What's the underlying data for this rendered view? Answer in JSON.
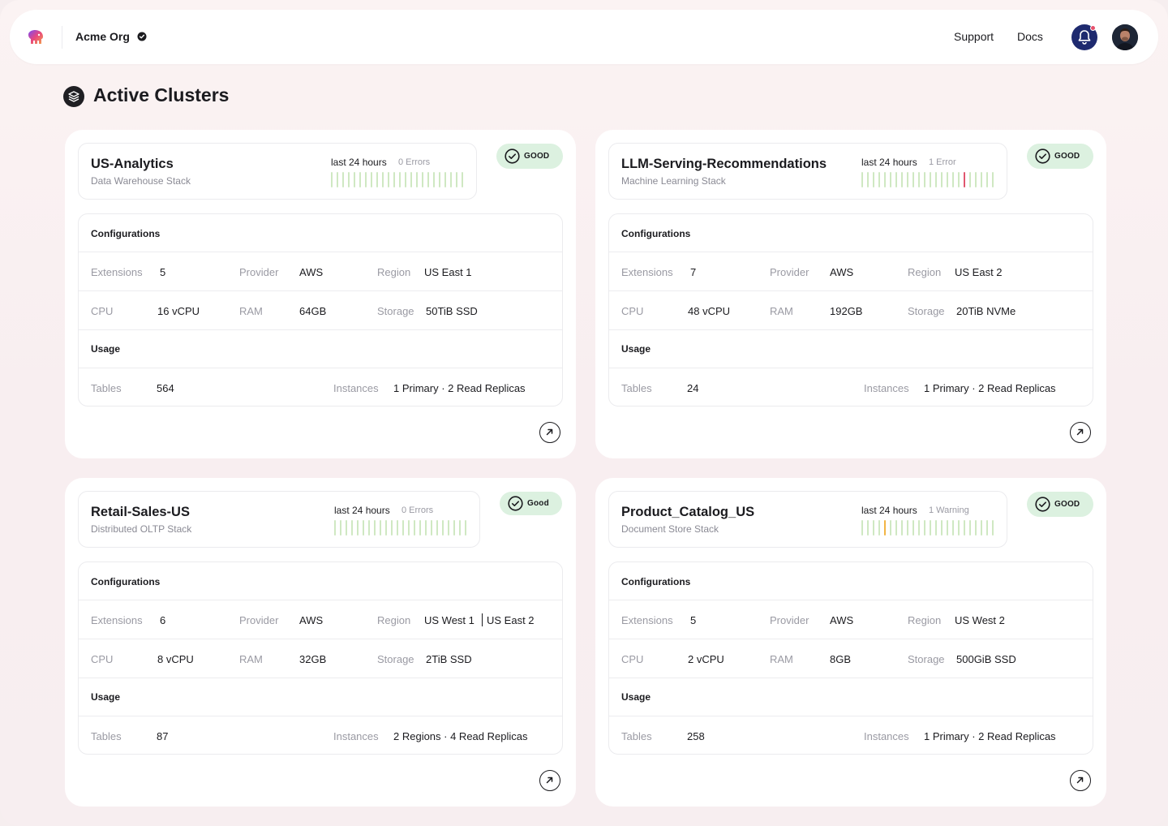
{
  "header": {
    "org_name": "Acme Org",
    "nav": {
      "support": "Support",
      "docs": "Docs"
    }
  },
  "page": {
    "title": "Active Clusters"
  },
  "labels": {
    "configurations": "Configurations",
    "usage": "Usage",
    "extensions": "Extensions",
    "provider": "Provider",
    "region": "Region",
    "cpu": "CPU",
    "ram": "RAM",
    "storage": "Storage",
    "tables": "Tables",
    "instances": "Instances"
  },
  "colors": {
    "bar_ok": "#cfe8c2",
    "bar_error": "#e0566e",
    "bar_warning": "#f2b544",
    "badge_bg": "#dcf1e0"
  },
  "clusters": [
    {
      "name": "US-Analytics",
      "stack": "Data Warehouse Stack",
      "period": "last 24 hours",
      "issues": "0 Errors",
      "status": "GOOD",
      "extensions": "5",
      "provider": "AWS",
      "region": "US East 1",
      "cpu": "16 vCPU",
      "ram": "64GB",
      "storage": "50TiB SSD",
      "tables": "564",
      "instances": "1 Primary · 2 Read Replicas",
      "bars": [
        "ok",
        "ok",
        "ok",
        "ok",
        "ok",
        "ok",
        "ok",
        "ok",
        "ok",
        "ok",
        "ok",
        "ok",
        "ok",
        "ok",
        "ok",
        "ok",
        "ok",
        "ok",
        "ok",
        "ok",
        "ok",
        "ok",
        "ok",
        "ok"
      ]
    },
    {
      "name": "LLM-Serving-Recommendations",
      "stack": "Machine Learning Stack",
      "period": "last 24 hours",
      "issues": "1 Error",
      "status": "GOOD",
      "extensions": "7",
      "provider": "AWS",
      "region": "US East 2",
      "cpu": "48 vCPU",
      "ram": "192GB",
      "storage": "20TiB NVMe",
      "tables": "24",
      "instances": "1 Primary · 2 Read Replicas",
      "bars": [
        "ok",
        "ok",
        "ok",
        "ok",
        "ok",
        "ok",
        "ok",
        "ok",
        "ok",
        "ok",
        "ok",
        "ok",
        "ok",
        "ok",
        "ok",
        "ok",
        "ok",
        "ok",
        "error",
        "ok",
        "ok",
        "ok",
        "ok",
        "ok"
      ]
    },
    {
      "name": "Retail-Sales-US",
      "stack": "Distributed OLTP Stack",
      "period": "last 24 hours",
      "issues": "0 Errors",
      "status": "Good",
      "extensions": "6",
      "provider": "AWS",
      "region": "US West 1",
      "region_extra": "US East 2",
      "cpu": "8 vCPU",
      "ram": "32GB",
      "storage": "2TiB SSD",
      "tables": "87",
      "instances": "2 Regions · 4 Read Replicas",
      "bars": [
        "ok",
        "ok",
        "ok",
        "ok",
        "ok",
        "ok",
        "ok",
        "ok",
        "ok",
        "ok",
        "ok",
        "ok",
        "ok",
        "ok",
        "ok",
        "ok",
        "ok",
        "ok",
        "ok",
        "ok",
        "ok",
        "ok",
        "ok",
        "ok"
      ]
    },
    {
      "name": "Product_Catalog_US",
      "stack": "Document Store Stack",
      "period": "last 24 hours",
      "issues": "1 Warning",
      "status": "GOOD",
      "extensions": "5",
      "provider": "AWS",
      "region": "US West 2",
      "cpu": "2 vCPU",
      "ram": "8GB",
      "storage": "500GiB SSD",
      "tables": "258",
      "instances": "1 Primary · 2 Read Replicas",
      "bars": [
        "ok",
        "ok",
        "ok",
        "ok",
        "warning",
        "ok",
        "ok",
        "ok",
        "ok",
        "ok",
        "ok",
        "ok",
        "ok",
        "ok",
        "ok",
        "ok",
        "ok",
        "ok",
        "ok",
        "ok",
        "ok",
        "ok",
        "ok",
        "ok"
      ]
    }
  ]
}
